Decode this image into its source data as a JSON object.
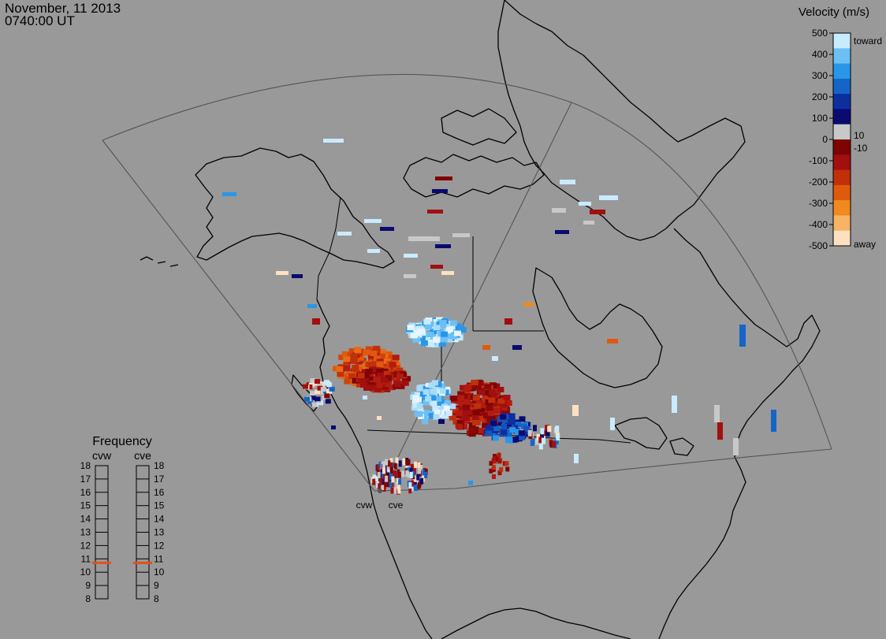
{
  "header": {
    "date": "November, 11 2013",
    "time": "0740:00 UT"
  },
  "velocity_scale": {
    "title": "Velocity (m/s)",
    "ticks": [
      "500",
      "400",
      "300",
      "200",
      "100",
      "0",
      "-100",
      "-200",
      "-300",
      "-400",
      "-500"
    ],
    "label_10": "10",
    "label_neg10": "-10",
    "toward_label": "toward",
    "away_label": "away",
    "colors": [
      "#fde0c0",
      "#f7b366",
      "#f08a1e",
      "#e05a0e",
      "#c0300a",
      "#a10f0f",
      "#7e0404",
      "#c8c8c8",
      "#0a0a70",
      "#0c2fa0",
      "#1565c8",
      "#2a96e8",
      "#6cc0f4",
      "#c9ebff"
    ]
  },
  "frequency": {
    "title": "Frequency",
    "radars": [
      "cvw",
      "cve"
    ],
    "ticks": [
      "18",
      "17",
      "16",
      "15",
      "14",
      "13",
      "12",
      "11",
      "10",
      "9",
      "8"
    ],
    "cvw_mhz": 10.7,
    "cve_mhz": 10.7,
    "marker_color": "#e2521a"
  },
  "radar_sites": [
    "cvw",
    "cve"
  ]
}
